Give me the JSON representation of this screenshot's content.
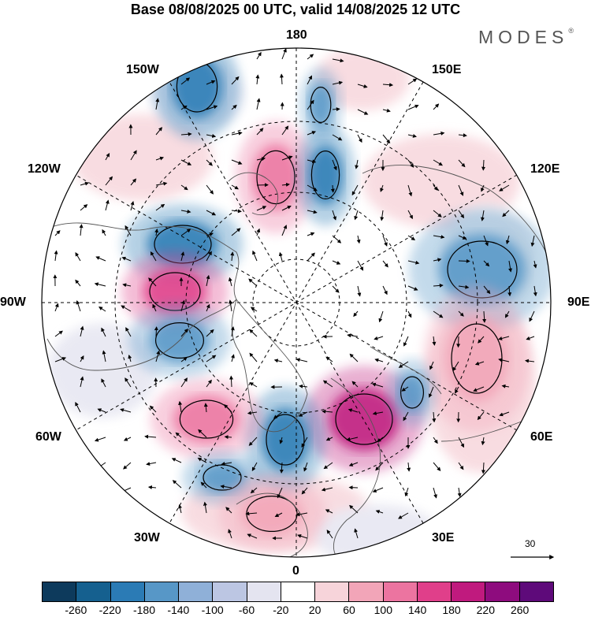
{
  "title": "Base 08/08/2025 00 UTC, valid 14/08/2025 12 UTC",
  "brand": "MODES",
  "brand_mark": "®",
  "longitude_labels": {
    "top": "180",
    "bottom": "0",
    "left": "90W",
    "right": "90E",
    "upper_left": "150W",
    "upper_right": "150E",
    "mid_upper_left": "120W",
    "mid_upper_right": "120E",
    "mid_lower_left": "60W",
    "mid_lower_right": "60E",
    "lower_left": "30W",
    "lower_right": "30E"
  },
  "vector_scale": {
    "value": "30"
  },
  "colorbar": {
    "colors": [
      "#0d3a5c",
      "#15608f",
      "#2b7bb5",
      "#5797c7",
      "#8fb0d8",
      "#bcc6e3",
      "#e4e4f0",
      "#ffffff",
      "#f7d4da",
      "#f2a5b8",
      "#ec74a0",
      "#e03f8a",
      "#c01a7e",
      "#8e0c7e",
      "#5e0a7a"
    ],
    "tick_labels": [
      "-260",
      "-220",
      "-180",
      "-140",
      "-100",
      "-60",
      "-20",
      "20",
      "60",
      "100",
      "140",
      "180",
      "220",
      "260"
    ]
  },
  "anomaly_centers": [
    {
      "name": "high-120W-pink",
      "value": 120,
      "color": "#ec74a0"
    },
    {
      "name": "low-130W-blue",
      "value": -180,
      "color": "#2b7bb5"
    },
    {
      "name": "low-west-canada",
      "value": -180,
      "color": "#2b7bb5"
    },
    {
      "name": "high-hudson",
      "value": 160,
      "color": "#e03f8a"
    },
    {
      "name": "low-labrador",
      "value": -150,
      "color": "#5797c7"
    },
    {
      "name": "low-90E",
      "value": -160,
      "color": "#5797c7"
    },
    {
      "name": "high-60E",
      "value": 90,
      "color": "#f2a5b8"
    },
    {
      "name": "high-europe",
      "value": 180,
      "color": "#c01a7e"
    },
    {
      "name": "low-greenland-sea",
      "value": -200,
      "color": "#2b7bb5"
    },
    {
      "name": "high-atlantic",
      "value": 120,
      "color": "#ec74a0"
    },
    {
      "name": "low-atlantic",
      "value": -140,
      "color": "#5797c7"
    },
    {
      "name": "high-30W",
      "value": 100,
      "color": "#f2a5b8"
    }
  ]
}
